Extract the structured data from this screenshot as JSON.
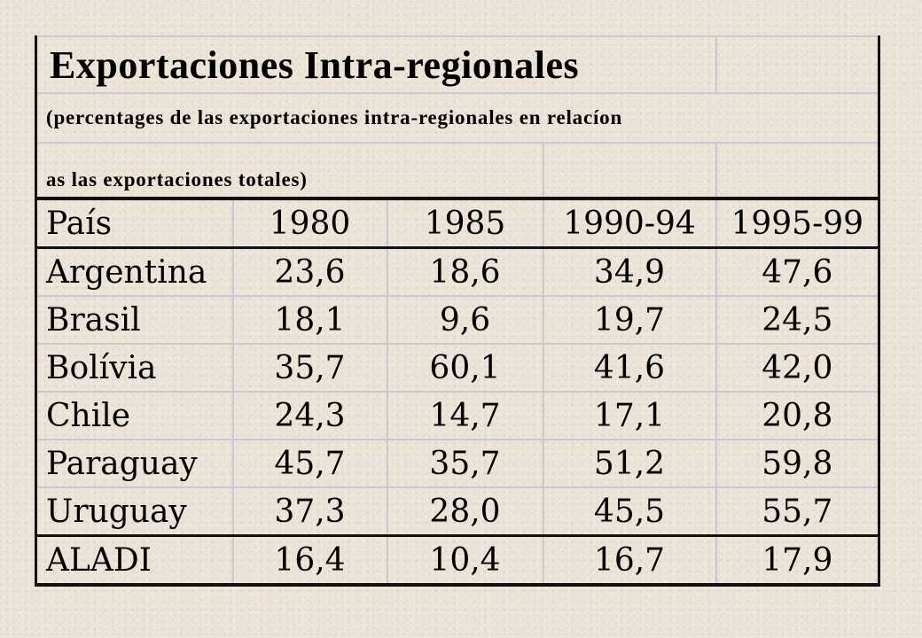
{
  "title": "Exportaciones  Intra-regionales",
  "subtitle_line1": "(percentages de las exportaciones intra-regionales en relacíon",
  "subtitle_line2": "as las exportaciones totales)",
  "columns": [
    "País",
    "1980",
    "1985",
    "1990-94",
    "1995-99"
  ],
  "rows": [
    {
      "country": "Argentina",
      "values": [
        "23,6",
        "18,6",
        "34,9",
        "47,6"
      ]
    },
    {
      "country": "Brasil",
      "values": [
        "18,1",
        "9,6",
        "19,7",
        "24,5"
      ]
    },
    {
      "country": "Bolívia",
      "values": [
        "35,7",
        "60,1",
        "41,6",
        "42,0"
      ]
    },
    {
      "country": "Chile",
      "values": [
        "24,3",
        "14,7",
        "17,1",
        "20,8"
      ]
    },
    {
      "country": "Paraguay",
      "values": [
        "45,7",
        "35,7",
        "51,2",
        "59,8"
      ]
    },
    {
      "country": "Uruguay",
      "values": [
        "37,3",
        "28,0",
        "45,5",
        "55,7"
      ]
    }
  ],
  "total": {
    "country": "ALADI",
    "values": [
      "16,4",
      "10,4",
      "16,7",
      "17,9"
    ]
  }
}
